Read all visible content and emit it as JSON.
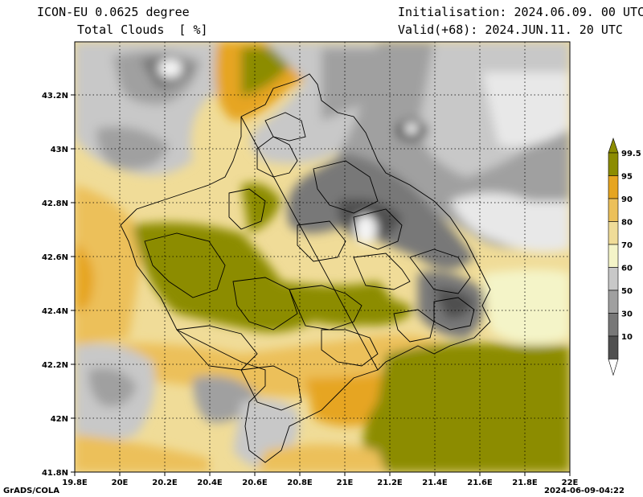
{
  "header": {
    "model": "ICON-EU 0.0625 degree",
    "variable": "Total Clouds  [ %]",
    "init": "Initialisation: 2024.06.09. 00 UTC",
    "valid": "Valid(+68): 2024.JUN.11. 20 UTC"
  },
  "axes": {
    "x_ticks": [
      "19.8E",
      "20E",
      "20.2E",
      "20.4E",
      "20.6E",
      "20.8E",
      "21E",
      "21.2E",
      "21.4E",
      "21.6E",
      "21.8E",
      "22E"
    ],
    "y_ticks": [
      "43.2N",
      "43N",
      "42.8N",
      "42.6N",
      "42.4N",
      "42.2N",
      "42N",
      "41.8N"
    ]
  },
  "colorbar": {
    "labels": [
      "99.5",
      "95",
      "90",
      "80",
      "70",
      "60",
      "50",
      "30",
      "10"
    ],
    "colors": [
      "#8c8c00",
      "#e6a520",
      "#ecc05a",
      "#f0dc98",
      "#f4f4c8",
      "#c8c8c8",
      "#a0a0a0",
      "#787878",
      "#505050"
    ]
  },
  "footer": {
    "left": "GrADS/COLA",
    "right": "2024-06-09-04:22"
  }
}
